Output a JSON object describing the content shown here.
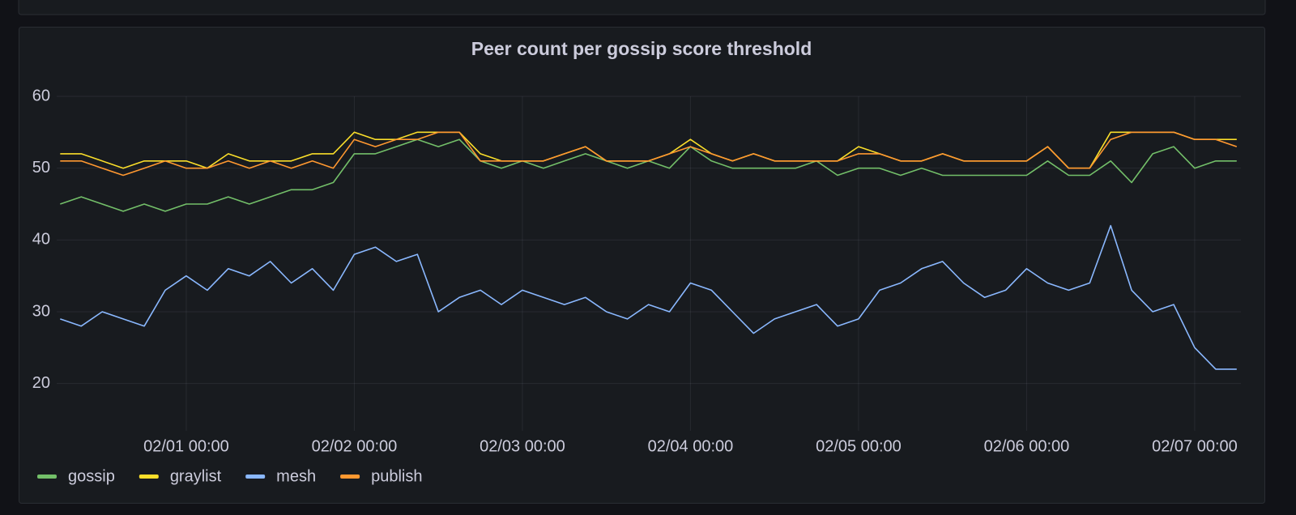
{
  "chart_data": {
    "type": "line",
    "title": "Peer count per gossip score threshold",
    "x": [
      "01/31 06:00",
      "01/31 09:00",
      "01/31 12:00",
      "01/31 15:00",
      "01/31 18:00",
      "01/31 21:00",
      "02/01 00:00",
      "02/01 03:00",
      "02/01 06:00",
      "02/01 09:00",
      "02/01 12:00",
      "02/01 15:00",
      "02/01 18:00",
      "02/01 21:00",
      "02/02 00:00",
      "02/02 03:00",
      "02/02 06:00",
      "02/02 09:00",
      "02/02 12:00",
      "02/02 15:00",
      "02/02 18:00",
      "02/02 21:00",
      "02/03 00:00",
      "02/03 03:00",
      "02/03 06:00",
      "02/03 09:00",
      "02/03 12:00",
      "02/03 15:00",
      "02/03 18:00",
      "02/03 21:00",
      "02/04 00:00",
      "02/04 03:00",
      "02/04 06:00",
      "02/04 09:00",
      "02/04 12:00",
      "02/04 15:00",
      "02/04 18:00",
      "02/04 21:00",
      "02/05 00:00",
      "02/05 03:00",
      "02/05 06:00",
      "02/05 09:00",
      "02/05 12:00",
      "02/05 15:00",
      "02/05 18:00",
      "02/05 21:00",
      "02/06 00:00",
      "02/06 03:00",
      "02/06 06:00",
      "02/06 09:00",
      "02/06 12:00",
      "02/06 15:00",
      "02/06 18:00",
      "02/06 21:00",
      "02/07 00:00",
      "02/07 03:00",
      "02/07 06:00"
    ],
    "series": [
      {
        "name": "gossip",
        "color": "#73bf69",
        "values": [
          45,
          46,
          45,
          44,
          45,
          44,
          45,
          45,
          46,
          45,
          46,
          47,
          47,
          48,
          52,
          52,
          53,
          54,
          53,
          54,
          51,
          50,
          51,
          50,
          51,
          52,
          51,
          50,
          51,
          50,
          53,
          51,
          50,
          50,
          50,
          50,
          51,
          49,
          50,
          50,
          49,
          50,
          49,
          49,
          49,
          49,
          49,
          51,
          49,
          49,
          51,
          48,
          52,
          53,
          50,
          51,
          51
        ]
      },
      {
        "name": "graylist",
        "color": "#fade2a",
        "values": [
          52,
          52,
          51,
          50,
          51,
          51,
          51,
          50,
          52,
          51,
          51,
          51,
          52,
          52,
          55,
          54,
          54,
          55,
          55,
          55,
          52,
          51,
          51,
          51,
          52,
          53,
          51,
          51,
          51,
          52,
          54,
          52,
          51,
          52,
          51,
          51,
          51,
          51,
          53,
          52,
          51,
          51,
          52,
          51,
          51,
          51,
          51,
          53,
          50,
          50,
          55,
          55,
          55,
          55,
          54,
          54,
          54
        ]
      },
      {
        "name": "mesh",
        "color": "#8ab8ff",
        "values": [
          29,
          28,
          30,
          29,
          28,
          33,
          35,
          33,
          36,
          35,
          37,
          34,
          36,
          33,
          38,
          39,
          37,
          38,
          30,
          32,
          33,
          31,
          33,
          32,
          31,
          32,
          30,
          29,
          31,
          30,
          34,
          33,
          30,
          27,
          29,
          30,
          31,
          28,
          29,
          33,
          34,
          36,
          37,
          34,
          32,
          33,
          36,
          34,
          33,
          34,
          42,
          33,
          30,
          31,
          25,
          22,
          22
        ]
      },
      {
        "name": "publish",
        "color": "#ff9830",
        "values": [
          51,
          51,
          50,
          49,
          50,
          51,
          50,
          50,
          51,
          50,
          51,
          50,
          51,
          50,
          54,
          53,
          54,
          54,
          55,
          55,
          51,
          51,
          51,
          51,
          52,
          53,
          51,
          51,
          51,
          52,
          53,
          52,
          51,
          52,
          51,
          51,
          51,
          51,
          52,
          52,
          51,
          51,
          52,
          51,
          51,
          51,
          51,
          53,
          50,
          50,
          54,
          55,
          55,
          55,
          54,
          54,
          53
        ]
      }
    ],
    "xlim": [
      "01/31 05:30",
      "02/07 06:36"
    ],
    "xticks": [
      "02/01 00:00",
      "02/02 00:00",
      "02/03 00:00",
      "02/04 00:00",
      "02/05 00:00",
      "02/06 00:00",
      "02/07 00:00"
    ],
    "ylim": [
      15,
      60
    ],
    "yticks": [
      20,
      30,
      40,
      50,
      60
    ],
    "grid": true,
    "legend": "bottom"
  }
}
